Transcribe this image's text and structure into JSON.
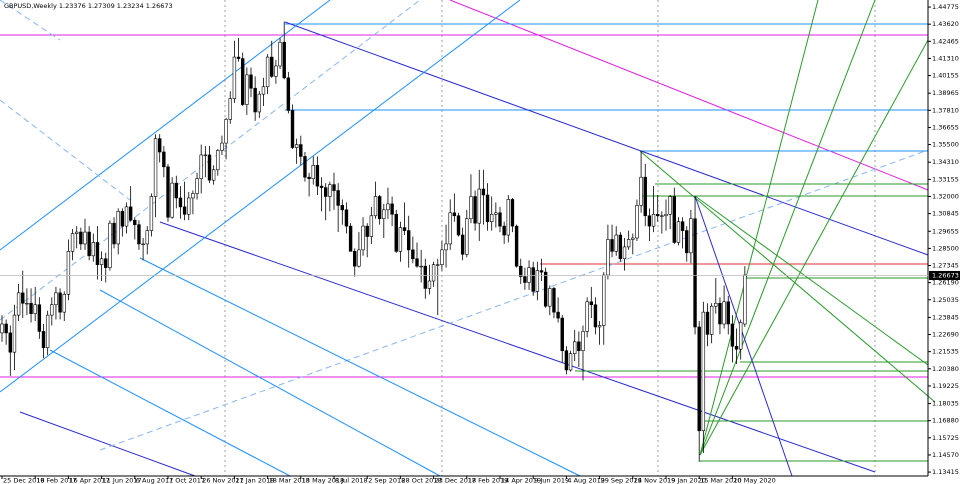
{
  "chart_data": {
    "type": "candlestick",
    "title": "GBPUSD,Weekly  1.23376 1.27309 1.23234 1.26673",
    "current_price": 1.26673,
    "bull_color": "#ffffff",
    "bear_color": "#000000",
    "outline_color": "#000000",
    "ylim": [
      1.1315,
      1.4525
    ],
    "yticks": [
      1.44775,
      {
        "value": 1.4362,
        "label": "1.43620"
      },
      1.42465,
      {
        "value": 1.4131,
        "label": "1.41310"
      },
      1.40155,
      1.38965,
      {
        "value": 1.3781,
        "label": "1.37810"
      },
      1.36655,
      {
        "value": 1.355,
        "label": "1.35500"
      },
      {
        "value": 1.3431,
        "label": "1.34310"
      },
      1.33155,
      {
        "value": 1.32,
        "label": "1.32000"
      },
      1.30845,
      1.29655,
      {
        "value": 1.285,
        "label": "1.28500"
      },
      1.27345,
      {
        "value": 1.2619,
        "label": "1.26190"
      },
      1.25035,
      1.23845,
      {
        "value": 1.2269,
        "label": "1.22690"
      },
      1.21535,
      {
        "value": 1.2038,
        "label": "1.20380"
      },
      1.19225,
      1.18035,
      {
        "value": 1.1688,
        "label": "1.16880"
      },
      1.15725,
      {
        "value": 1.1457,
        "label": "1.14570"
      },
      1.13415
    ],
    "categories": [
      "25 Dec 2016",
      null,
      null,
      null,
      null,
      null,
      null,
      null,
      "19 Feb 2017",
      null,
      null,
      null,
      null,
      null,
      null,
      null,
      "16 Apr 2017",
      null,
      null,
      null,
      null,
      null,
      null,
      null,
      "11 Jun 2017",
      null,
      null,
      null,
      null,
      null,
      null,
      null,
      "6 Aug 2017",
      null,
      null,
      null,
      null,
      null,
      null,
      null,
      "1 Oct 2017",
      null,
      null,
      null,
      null,
      null,
      null,
      null,
      "26 Nov 2017",
      null,
      null,
      null,
      null,
      null,
      null,
      null,
      "21 Jan 2018",
      null,
      null,
      null,
      null,
      null,
      null,
      null,
      "18 Mar 2018",
      null,
      null,
      null,
      null,
      null,
      null,
      null,
      "13 May 2018",
      null,
      null,
      null,
      null,
      null,
      null,
      null,
      "8 Jul 2018",
      null,
      null,
      null,
      null,
      null,
      null,
      null,
      "2 Sep 2018",
      null,
      null,
      null,
      null,
      null,
      null,
      null,
      "28 Oct 2018",
      null,
      null,
      null,
      null,
      null,
      null,
      null,
      "23 Dec 2018",
      null,
      null,
      null,
      null,
      null,
      null,
      null,
      "17 Feb 2019",
      null,
      null,
      null,
      null,
      null,
      null,
      null,
      "14 Apr 2019",
      null,
      null,
      null,
      null,
      null,
      null,
      null,
      "9 Jun 2019",
      null,
      null,
      null,
      null,
      null,
      null,
      null,
      "4 Aug 2019",
      null,
      null,
      null,
      null,
      null,
      null,
      null,
      "29 Sep 2019",
      null,
      null,
      null,
      null,
      null,
      null,
      null,
      "24 Nov 2019",
      null,
      null,
      null,
      null,
      null,
      null,
      null,
      "19 Jan 2020",
      null,
      null,
      null,
      null,
      null,
      null,
      null,
      "15 Mar 2020",
      null,
      null,
      null,
      null,
      null,
      null,
      null,
      "10 May 2020",
      null,
      null,
      null
    ],
    "ohlc": [
      [
        1.228,
        1.24,
        1.222,
        1.234
      ],
      [
        1.234,
        1.237,
        1.22,
        1.228
      ],
      [
        1.228,
        1.233,
        1.199,
        1.215
      ],
      [
        1.215,
        1.247,
        1.203,
        1.24
      ],
      [
        1.24,
        1.261,
        1.236,
        1.255
      ],
      [
        1.255,
        1.27,
        1.238,
        1.248
      ],
      [
        1.248,
        1.258,
        1.24,
        1.248
      ],
      [
        1.248,
        1.258,
        1.235,
        1.241
      ],
      [
        1.241,
        1.259,
        1.236,
        1.247
      ],
      [
        1.247,
        1.252,
        1.224,
        1.229
      ],
      [
        1.229,
        1.234,
        1.211,
        1.218
      ],
      [
        1.218,
        1.243,
        1.213,
        1.24
      ],
      [
        1.24,
        1.252,
        1.233,
        1.247
      ],
      [
        1.247,
        1.259,
        1.237,
        1.255
      ],
      [
        1.255,
        1.258,
        1.237,
        1.242
      ],
      [
        1.242,
        1.256,
        1.236,
        1.254
      ],
      [
        1.254,
        1.291,
        1.25,
        1.283
      ],
      [
        1.283,
        1.298,
        1.277,
        1.295
      ],
      [
        1.295,
        1.3,
        1.285,
        1.296
      ],
      [
        1.296,
        1.299,
        1.284,
        1.288
      ],
      [
        1.288,
        1.305,
        1.284,
        1.296
      ],
      [
        1.296,
        1.3,
        1.277,
        1.28
      ],
      [
        1.28,
        1.295,
        1.276,
        1.289
      ],
      [
        1.289,
        1.3,
        1.264,
        1.274
      ],
      [
        1.274,
        1.283,
        1.263,
        1.278
      ],
      [
        1.278,
        1.282,
        1.262,
        1.272
      ],
      [
        1.272,
        1.304,
        1.27,
        1.302
      ],
      [
        1.302,
        1.306,
        1.285,
        1.288
      ],
      [
        1.288,
        1.312,
        1.281,
        1.31
      ],
      [
        1.31,
        1.312,
        1.293,
        1.3
      ],
      [
        1.3,
        1.316,
        1.295,
        1.313
      ],
      [
        1.313,
        1.327,
        1.303,
        1.304
      ],
      [
        1.304,
        1.306,
        1.291,
        1.301
      ],
      [
        1.301,
        1.304,
        1.284,
        1.288
      ],
      [
        1.288,
        1.292,
        1.277,
        1.288
      ],
      [
        1.288,
        1.3,
        1.281,
        1.297
      ],
      [
        1.297,
        1.322,
        1.293,
        1.32
      ],
      [
        1.32,
        1.362,
        1.306,
        1.359
      ],
      [
        1.359,
        1.362,
        1.343,
        1.35
      ],
      [
        1.35,
        1.354,
        1.333,
        1.34
      ],
      [
        1.34,
        1.342,
        1.303,
        1.306
      ],
      [
        1.306,
        1.333,
        1.305,
        1.329
      ],
      [
        1.329,
        1.334,
        1.312,
        1.319
      ],
      [
        1.319,
        1.327,
        1.305,
        1.313
      ],
      [
        1.313,
        1.33,
        1.304,
        1.308
      ],
      [
        1.308,
        1.323,
        1.304,
        1.319
      ],
      [
        1.319,
        1.324,
        1.308,
        1.322
      ],
      [
        1.322,
        1.336,
        1.318,
        1.332
      ],
      [
        1.332,
        1.355,
        1.322,
        1.348
      ],
      [
        1.348,
        1.354,
        1.333,
        1.348
      ],
      [
        1.348,
        1.354,
        1.329,
        1.331
      ],
      [
        1.331,
        1.341,
        1.328,
        1.338
      ],
      [
        1.338,
        1.352,
        1.334,
        1.351
      ],
      [
        1.351,
        1.361,
        1.348,
        1.356
      ],
      [
        1.356,
        1.373,
        1.345,
        1.372
      ],
      [
        1.372,
        1.391,
        1.369,
        1.386
      ],
      [
        1.386,
        1.425,
        1.383,
        1.414
      ],
      [
        1.414,
        1.427,
        1.411,
        1.413
      ],
      [
        1.413,
        1.417,
        1.381,
        1.382
      ],
      [
        1.382,
        1.407,
        1.375,
        1.402
      ],
      [
        1.402,
        1.407,
        1.387,
        1.393
      ],
      [
        1.393,
        1.401,
        1.371,
        1.377
      ],
      [
        1.377,
        1.391,
        1.373,
        1.389
      ],
      [
        1.389,
        1.4,
        1.381,
        1.394
      ],
      [
        1.394,
        1.416,
        1.389,
        1.414
      ],
      [
        1.414,
        1.425,
        1.4,
        1.401
      ],
      [
        1.401,
        1.412,
        1.396,
        1.408
      ],
      [
        1.408,
        1.427,
        1.406,
        1.424
      ],
      [
        1.424,
        1.438,
        1.399,
        1.4
      ],
      [
        1.4,
        1.404,
        1.376,
        1.378
      ],
      [
        1.378,
        1.382,
        1.352,
        1.353
      ],
      [
        1.353,
        1.359,
        1.342,
        1.355
      ],
      [
        1.355,
        1.361,
        1.341,
        1.347
      ],
      [
        1.347,
        1.35,
        1.33,
        1.333
      ],
      [
        1.333,
        1.336,
        1.32,
        1.332
      ],
      [
        1.332,
        1.347,
        1.328,
        1.341
      ],
      [
        1.341,
        1.347,
        1.321,
        1.327
      ],
      [
        1.327,
        1.333,
        1.31,
        1.326
      ],
      [
        1.326,
        1.329,
        1.304,
        1.32
      ],
      [
        1.32,
        1.33,
        1.31,
        1.328
      ],
      [
        1.328,
        1.336,
        1.311,
        1.324
      ],
      [
        1.324,
        1.329,
        1.296,
        1.314
      ],
      [
        1.314,
        1.318,
        1.301,
        1.311
      ],
      [
        1.311,
        1.316,
        1.295,
        1.3
      ],
      [
        1.3,
        1.302,
        1.283,
        1.283
      ],
      [
        1.283,
        1.285,
        1.266,
        1.273
      ],
      [
        1.273,
        1.296,
        1.272,
        1.284
      ],
      [
        1.284,
        1.306,
        1.28,
        1.3
      ],
      [
        1.3,
        1.302,
        1.279,
        1.293
      ],
      [
        1.293,
        1.313,
        1.288,
        1.307
      ],
      [
        1.307,
        1.33,
        1.305,
        1.32
      ],
      [
        1.32,
        1.321,
        1.301,
        1.305
      ],
      [
        1.305,
        1.315,
        1.292,
        1.311
      ],
      [
        1.311,
        1.326,
        1.305,
        1.315
      ],
      [
        1.315,
        1.32,
        1.3,
        1.308
      ],
      [
        1.308,
        1.311,
        1.282,
        1.283
      ],
      [
        1.283,
        1.303,
        1.276,
        1.299
      ],
      [
        1.299,
        1.316,
        1.294,
        1.297
      ],
      [
        1.297,
        1.307,
        1.272,
        1.284
      ],
      [
        1.284,
        1.293,
        1.275,
        1.278
      ],
      [
        1.278,
        1.289,
        1.272,
        1.273
      ],
      [
        1.273,
        1.284,
        1.262,
        1.273
      ],
      [
        1.273,
        1.278,
        1.251,
        1.258
      ],
      [
        1.258,
        1.274,
        1.254,
        1.263
      ],
      [
        1.263,
        1.276,
        1.259,
        1.274
      ],
      [
        1.274,
        1.278,
        1.24,
        1.274
      ],
      [
        1.274,
        1.29,
        1.27,
        1.284
      ],
      [
        1.284,
        1.301,
        1.272,
        1.288
      ],
      [
        1.288,
        1.318,
        1.284,
        1.309
      ],
      [
        1.309,
        1.322,
        1.303,
        1.307
      ],
      [
        1.307,
        1.309,
        1.293,
        1.294
      ],
      [
        1.294,
        1.299,
        1.277,
        1.281
      ],
      [
        1.281,
        1.311,
        1.279,
        1.305
      ],
      [
        1.305,
        1.335,
        1.302,
        1.32
      ],
      [
        1.32,
        1.324,
        1.297,
        1.302
      ],
      [
        1.302,
        1.338,
        1.29,
        1.325
      ],
      [
        1.325,
        1.338,
        1.301,
        1.321
      ],
      [
        1.321,
        1.329,
        1.297,
        1.303
      ],
      [
        1.303,
        1.32,
        1.297,
        1.308
      ],
      [
        1.308,
        1.316,
        1.299,
        1.309
      ],
      [
        1.309,
        1.313,
        1.296,
        1.3
      ],
      [
        1.3,
        1.303,
        1.288,
        1.294
      ],
      [
        1.294,
        1.321,
        1.289,
        1.318
      ],
      [
        1.318,
        1.319,
        1.296,
        1.3
      ],
      [
        1.3,
        1.301,
        1.272,
        1.273
      ],
      [
        1.273,
        1.278,
        1.261,
        1.266
      ],
      [
        1.266,
        1.272,
        1.257,
        1.262
      ],
      [
        1.262,
        1.277,
        1.257,
        1.272
      ],
      [
        1.272,
        1.276,
        1.253,
        1.256
      ],
      [
        1.256,
        1.276,
        1.25,
        1.27
      ],
      [
        1.27,
        1.278,
        1.263,
        1.269
      ],
      [
        1.269,
        1.272,
        1.245,
        1.246
      ],
      [
        1.246,
        1.26,
        1.24,
        1.258
      ],
      [
        1.258,
        1.259,
        1.238,
        1.242
      ],
      [
        1.242,
        1.252,
        1.235,
        1.238
      ],
      [
        1.238,
        1.24,
        1.208,
        1.216
      ],
      [
        1.216,
        1.219,
        1.2,
        1.203
      ],
      [
        1.203,
        1.216,
        1.202,
        1.214
      ],
      [
        1.214,
        1.23,
        1.209,
        1.222
      ],
      [
        1.222,
        1.229,
        1.205,
        1.216
      ],
      [
        1.216,
        1.233,
        1.196,
        1.229
      ],
      [
        1.229,
        1.252,
        1.225,
        1.249
      ],
      [
        1.249,
        1.259,
        1.238,
        1.247
      ],
      [
        1.247,
        1.252,
        1.227,
        1.232
      ],
      [
        1.232,
        1.236,
        1.22,
        1.233
      ],
      [
        1.233,
        1.269,
        1.22,
        1.267
      ],
      [
        1.267,
        1.301,
        1.264,
        1.291
      ],
      [
        1.291,
        1.301,
        1.279,
        1.283
      ],
      [
        1.283,
        1.3,
        1.28,
        1.294
      ],
      [
        1.294,
        1.296,
        1.276,
        1.278
      ],
      [
        1.278,
        1.292,
        1.27,
        1.286
      ],
      [
        1.286,
        1.297,
        1.284,
        1.291
      ],
      [
        1.291,
        1.295,
        1.281,
        1.292
      ],
      [
        1.292,
        1.318,
        1.29,
        1.314
      ],
      [
        1.314,
        1.351,
        1.309,
        1.333
      ],
      [
        1.333,
        1.342,
        1.3,
        1.307
      ],
      [
        1.307,
        1.312,
        1.29,
        1.3
      ],
      [
        1.3,
        1.327,
        1.296,
        1.308
      ],
      [
        1.308,
        1.321,
        1.303,
        1.307
      ],
      [
        1.307,
        1.31,
        1.295,
        1.307
      ],
      [
        1.307,
        1.318,
        1.297,
        1.308
      ],
      [
        1.308,
        1.321,
        1.298,
        1.32
      ],
      [
        1.32,
        1.326,
        1.288,
        1.289
      ],
      [
        1.289,
        1.306,
        1.287,
        1.303
      ],
      [
        1.303,
        1.306,
        1.285,
        1.297
      ],
      [
        1.297,
        1.3,
        1.276,
        1.282
      ],
      [
        1.282,
        1.311,
        1.275,
        1.305
      ],
      [
        1.305,
        1.32,
        1.227,
        1.232
      ],
      [
        1.232,
        1.236,
        1.141,
        1.162
      ],
      [
        1.162,
        1.249,
        1.147,
        1.242
      ],
      [
        1.242,
        1.248,
        1.219,
        1.227
      ],
      [
        1.227,
        1.248,
        1.221,
        1.246
      ],
      [
        1.246,
        1.265,
        1.241,
        1.248
      ],
      [
        1.248,
        1.252,
        1.227,
        1.234
      ],
      [
        1.234,
        1.26,
        1.231,
        1.249
      ],
      [
        1.249,
        1.253,
        1.227,
        1.234
      ],
      [
        1.234,
        1.24,
        1.208,
        1.219
      ],
      [
        1.219,
        1.231,
        1.207,
        1.217
      ],
      [
        1.217,
        1.237,
        1.21,
        1.235
      ],
      [
        1.234,
        1.273,
        1.232,
        1.267
      ]
    ]
  }
}
